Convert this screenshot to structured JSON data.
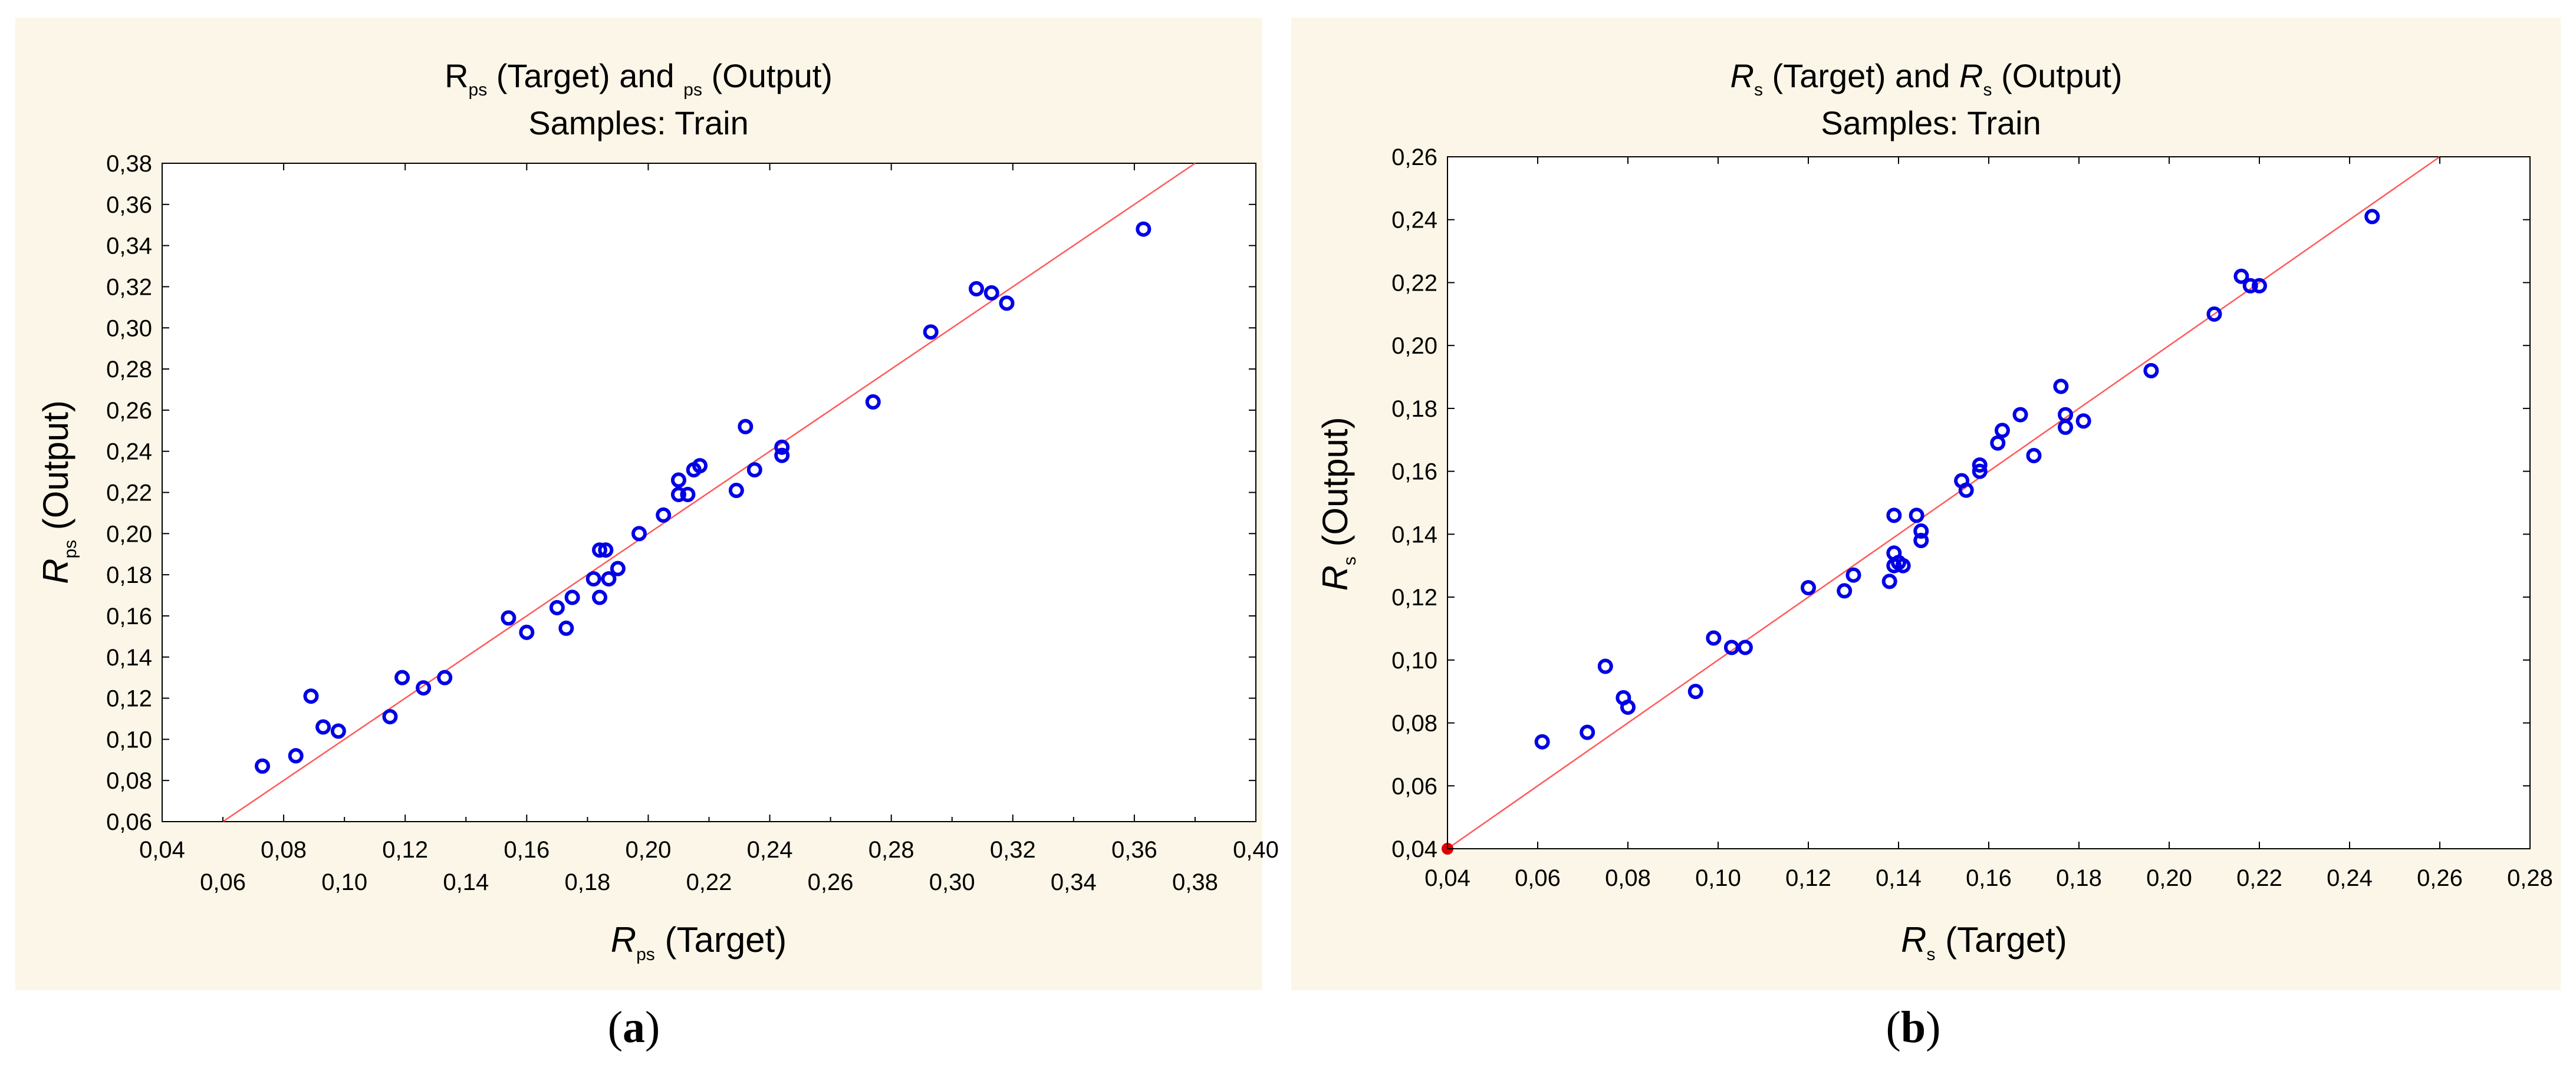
{
  "chart_data": [
    {
      "type": "scatter",
      "panel_label": "a",
      "title_part1": "R",
      "title_sub1": "ps",
      "title_part2": "(Target) and",
      "title_sub2": "ps",
      "title_part3": "(Output)",
      "title_line2": "Samples: Train",
      "xlabel_main": "R",
      "xlabel_sub": "ps",
      "xlabel_rest": "(Target)",
      "ylabel_main": "R",
      "ylabel_sub": "ps",
      "ylabel_rest": "(Output)",
      "xlim": [
        0.04,
        0.4
      ],
      "ylim": [
        0.06,
        0.38
      ],
      "x_ticks_upper": [
        "0,04",
        "0,08",
        "0,12",
        "0,16",
        "0,20",
        "0,24",
        "0,28",
        "0,32",
        "0,36",
        "0,40"
      ],
      "x_ticks_lower": [
        "0,06",
        "0,10",
        "0,14",
        "0,18",
        "0,22",
        "0,26",
        "0,30",
        "0,34",
        "0,38"
      ],
      "y_ticks": [
        "0,06",
        "0,08",
        "0,10",
        "0,12",
        "0,14",
        "0,16",
        "0,18",
        "0,20",
        "0,22",
        "0,24",
        "0,26",
        "0,28",
        "0,30",
        "0,32",
        "0,34",
        "0,36",
        "0,38"
      ],
      "grid": false,
      "reference_line": "y = x",
      "points": [
        [
          0.073,
          0.087
        ],
        [
          0.084,
          0.092
        ],
        [
          0.089,
          0.121
        ],
        [
          0.093,
          0.106
        ],
        [
          0.098,
          0.104
        ],
        [
          0.115,
          0.111
        ],
        [
          0.119,
          0.13
        ],
        [
          0.126,
          0.125
        ],
        [
          0.133,
          0.13
        ],
        [
          0.154,
          0.159
        ],
        [
          0.16,
          0.152
        ],
        [
          0.17,
          0.164
        ],
        [
          0.173,
          0.154
        ],
        [
          0.175,
          0.169
        ],
        [
          0.182,
          0.178
        ],
        [
          0.184,
          0.169
        ],
        [
          0.184,
          0.192
        ],
        [
          0.186,
          0.192
        ],
        [
          0.187,
          0.178
        ],
        [
          0.19,
          0.183
        ],
        [
          0.197,
          0.2
        ],
        [
          0.205,
          0.209
        ],
        [
          0.21,
          0.219
        ],
        [
          0.21,
          0.226
        ],
        [
          0.213,
          0.219
        ],
        [
          0.215,
          0.231
        ],
        [
          0.217,
          0.233
        ],
        [
          0.229,
          0.221
        ],
        [
          0.232,
          0.252
        ],
        [
          0.235,
          0.231
        ],
        [
          0.244,
          0.238
        ],
        [
          0.244,
          0.242
        ],
        [
          0.274,
          0.264
        ],
        [
          0.293,
          0.298
        ],
        [
          0.308,
          0.319
        ],
        [
          0.313,
          0.317
        ],
        [
          0.318,
          0.312
        ],
        [
          0.363,
          0.348
        ]
      ]
    },
    {
      "type": "scatter",
      "panel_label": "b",
      "title_part1": "R",
      "title_sub1": "s",
      "title_part2": "(Target) and",
      "title_sub2": "s",
      "title_part3": "(Output)",
      "title_line2": "Samples: Train",
      "xlabel_main": "R",
      "xlabel_sub": "s",
      "xlabel_rest": "(Target)",
      "ylabel_main": "R",
      "ylabel_sub": "s",
      "ylabel_rest": "(Output)",
      "xlim": [
        0.04,
        0.28
      ],
      "ylim": [
        0.04,
        0.26
      ],
      "x_ticks_upper": [
        "0,04",
        "0,06",
        "0,08",
        "0,10",
        "0,12",
        "0,14",
        "0,16",
        "0,18",
        "0,20",
        "0,22",
        "0,24",
        "0,26",
        "0,28"
      ],
      "x_ticks_lower": [],
      "y_ticks": [
        "0,04",
        "0,06",
        "0,08",
        "0,10",
        "0,12",
        "0,14",
        "0,16",
        "0,18",
        "0,20",
        "0,22",
        "0,24",
        "0,26"
      ],
      "grid": false,
      "reference_line": "y = x",
      "points": [
        [
          0.04,
          0.04
        ],
        [
          0.061,
          0.074
        ],
        [
          0.071,
          0.077
        ],
        [
          0.075,
          0.098
        ],
        [
          0.079,
          0.088
        ],
        [
          0.08,
          0.085
        ],
        [
          0.095,
          0.09
        ],
        [
          0.099,
          0.107
        ],
        [
          0.103,
          0.104
        ],
        [
          0.106,
          0.104
        ],
        [
          0.12,
          0.123
        ],
        [
          0.128,
          0.122
        ],
        [
          0.13,
          0.127
        ],
        [
          0.138,
          0.125
        ],
        [
          0.139,
          0.146
        ],
        [
          0.139,
          0.134
        ],
        [
          0.139,
          0.13
        ],
        [
          0.14,
          0.131
        ],
        [
          0.141,
          0.13
        ],
        [
          0.144,
          0.146
        ],
        [
          0.145,
          0.141
        ],
        [
          0.145,
          0.138
        ],
        [
          0.154,
          0.157
        ],
        [
          0.155,
          0.154
        ],
        [
          0.158,
          0.16
        ],
        [
          0.158,
          0.162
        ],
        [
          0.162,
          0.169
        ],
        [
          0.163,
          0.173
        ],
        [
          0.167,
          0.178
        ],
        [
          0.17,
          0.165
        ],
        [
          0.176,
          0.187
        ],
        [
          0.177,
          0.178
        ],
        [
          0.177,
          0.174
        ],
        [
          0.181,
          0.176
        ],
        [
          0.196,
          0.192
        ],
        [
          0.21,
          0.21
        ],
        [
          0.216,
          0.222
        ],
        [
          0.218,
          0.219
        ],
        [
          0.22,
          0.219
        ],
        [
          0.245,
          0.241
        ]
      ]
    }
  ],
  "colors": {
    "panel_background": "#fbf6e7",
    "marker": "#0000e6",
    "reference_line": "#ff5a5a",
    "highlight_marker": "#dd0000"
  }
}
